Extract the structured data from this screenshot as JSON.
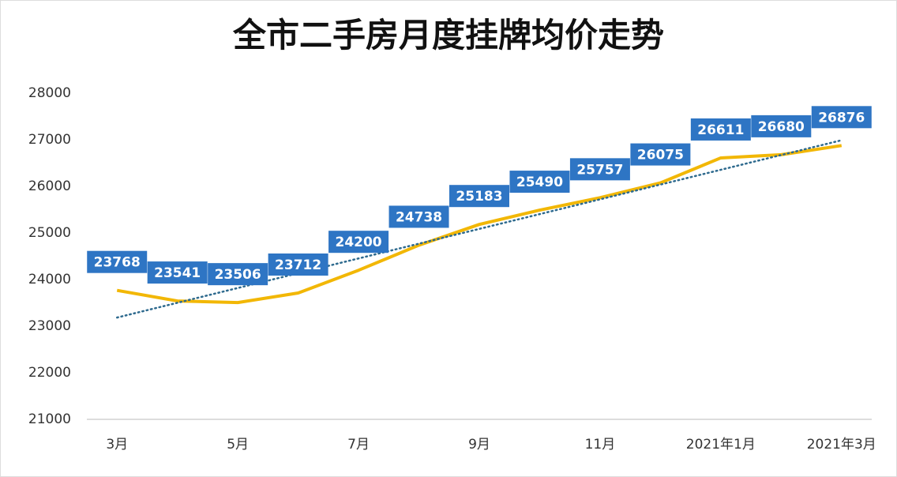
{
  "chart_data": {
    "type": "line",
    "title": "全市二手房月度挂牌均价走势",
    "categories": [
      "3月",
      null,
      "5月",
      null,
      "7月",
      null,
      "9月",
      null,
      "11月",
      null,
      "2021年1月",
      null,
      "2021年3月"
    ],
    "values": [
      23768,
      23541,
      23506,
      23712,
      24200,
      24738,
      25183,
      25490,
      25757,
      26075,
      26611,
      26680,
      26876
    ],
    "color": "#f2b705",
    "label_color": "#2e75c4",
    "ylim": [
      21000,
      28000
    ],
    "yticks": [
      21000,
      22000,
      23000,
      24000,
      25000,
      26000,
      27000,
      28000
    ],
    "grid": false,
    "trendline": true
  }
}
